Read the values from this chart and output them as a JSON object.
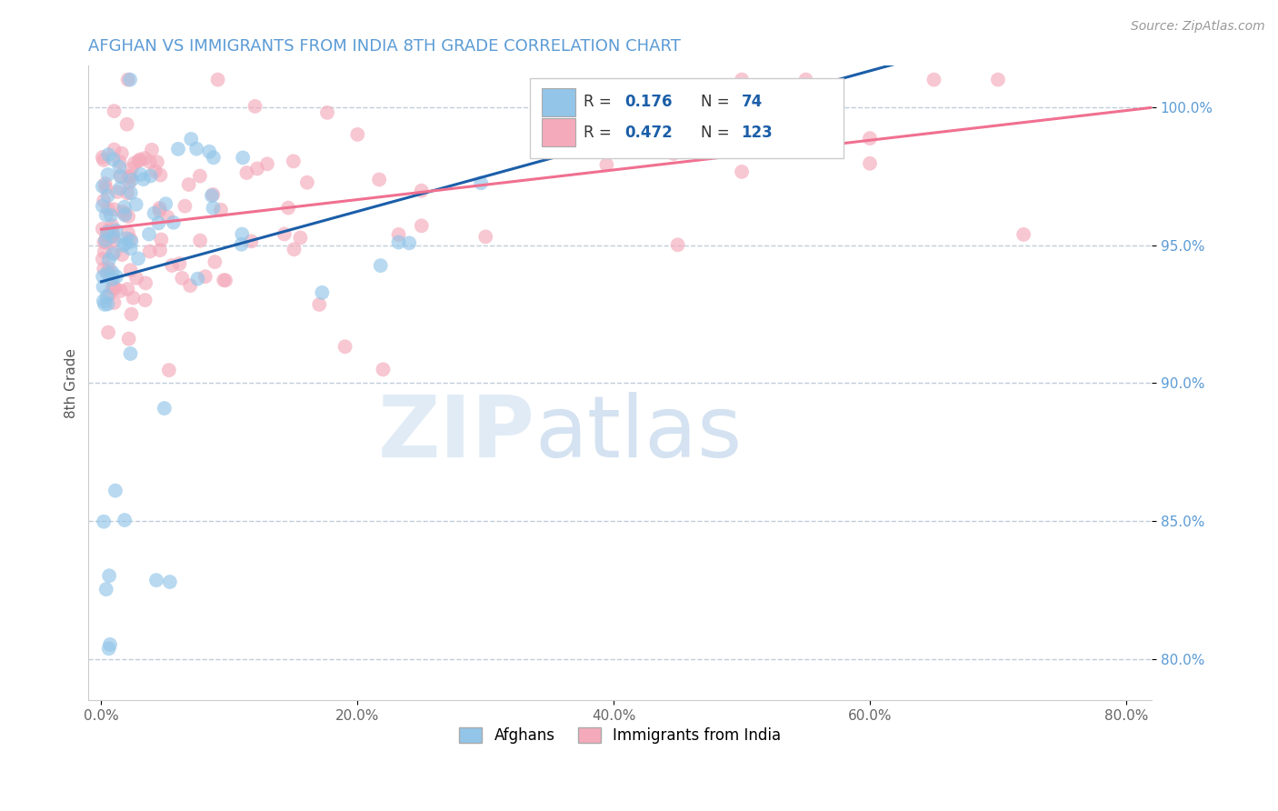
{
  "title": "AFGHAN VS IMMIGRANTS FROM INDIA 8TH GRADE CORRELATION CHART",
  "source": "Source: ZipAtlas.com",
  "xlabel_ticks": [
    "0.0%",
    "20.0%",
    "40.0%",
    "60.0%",
    "80.0%"
  ],
  "ylabel_ticks": [
    "80.0%",
    "85.0%",
    "90.0%",
    "95.0%",
    "100.0%"
  ],
  "xlim": [
    -0.01,
    0.82
  ],
  "ylim": [
    0.785,
    1.015
  ],
  "ytick_vals": [
    0.8,
    0.85,
    0.9,
    0.95,
    1.0
  ],
  "xtick_vals": [
    0.0,
    0.2,
    0.4,
    0.6,
    0.8
  ],
  "R_blue": 0.176,
  "N_blue": 74,
  "R_pink": 0.472,
  "N_pink": 123,
  "blue_color": "#92C5E8",
  "pink_color": "#F4AABB",
  "blue_line_color": "#1B5EA8",
  "pink_line_color": "#F07090",
  "title_color": "#5B9BD5",
  "watermark_zip": "ZIP",
  "watermark_atlas": "atlas",
  "background_color": "#FFFFFF"
}
